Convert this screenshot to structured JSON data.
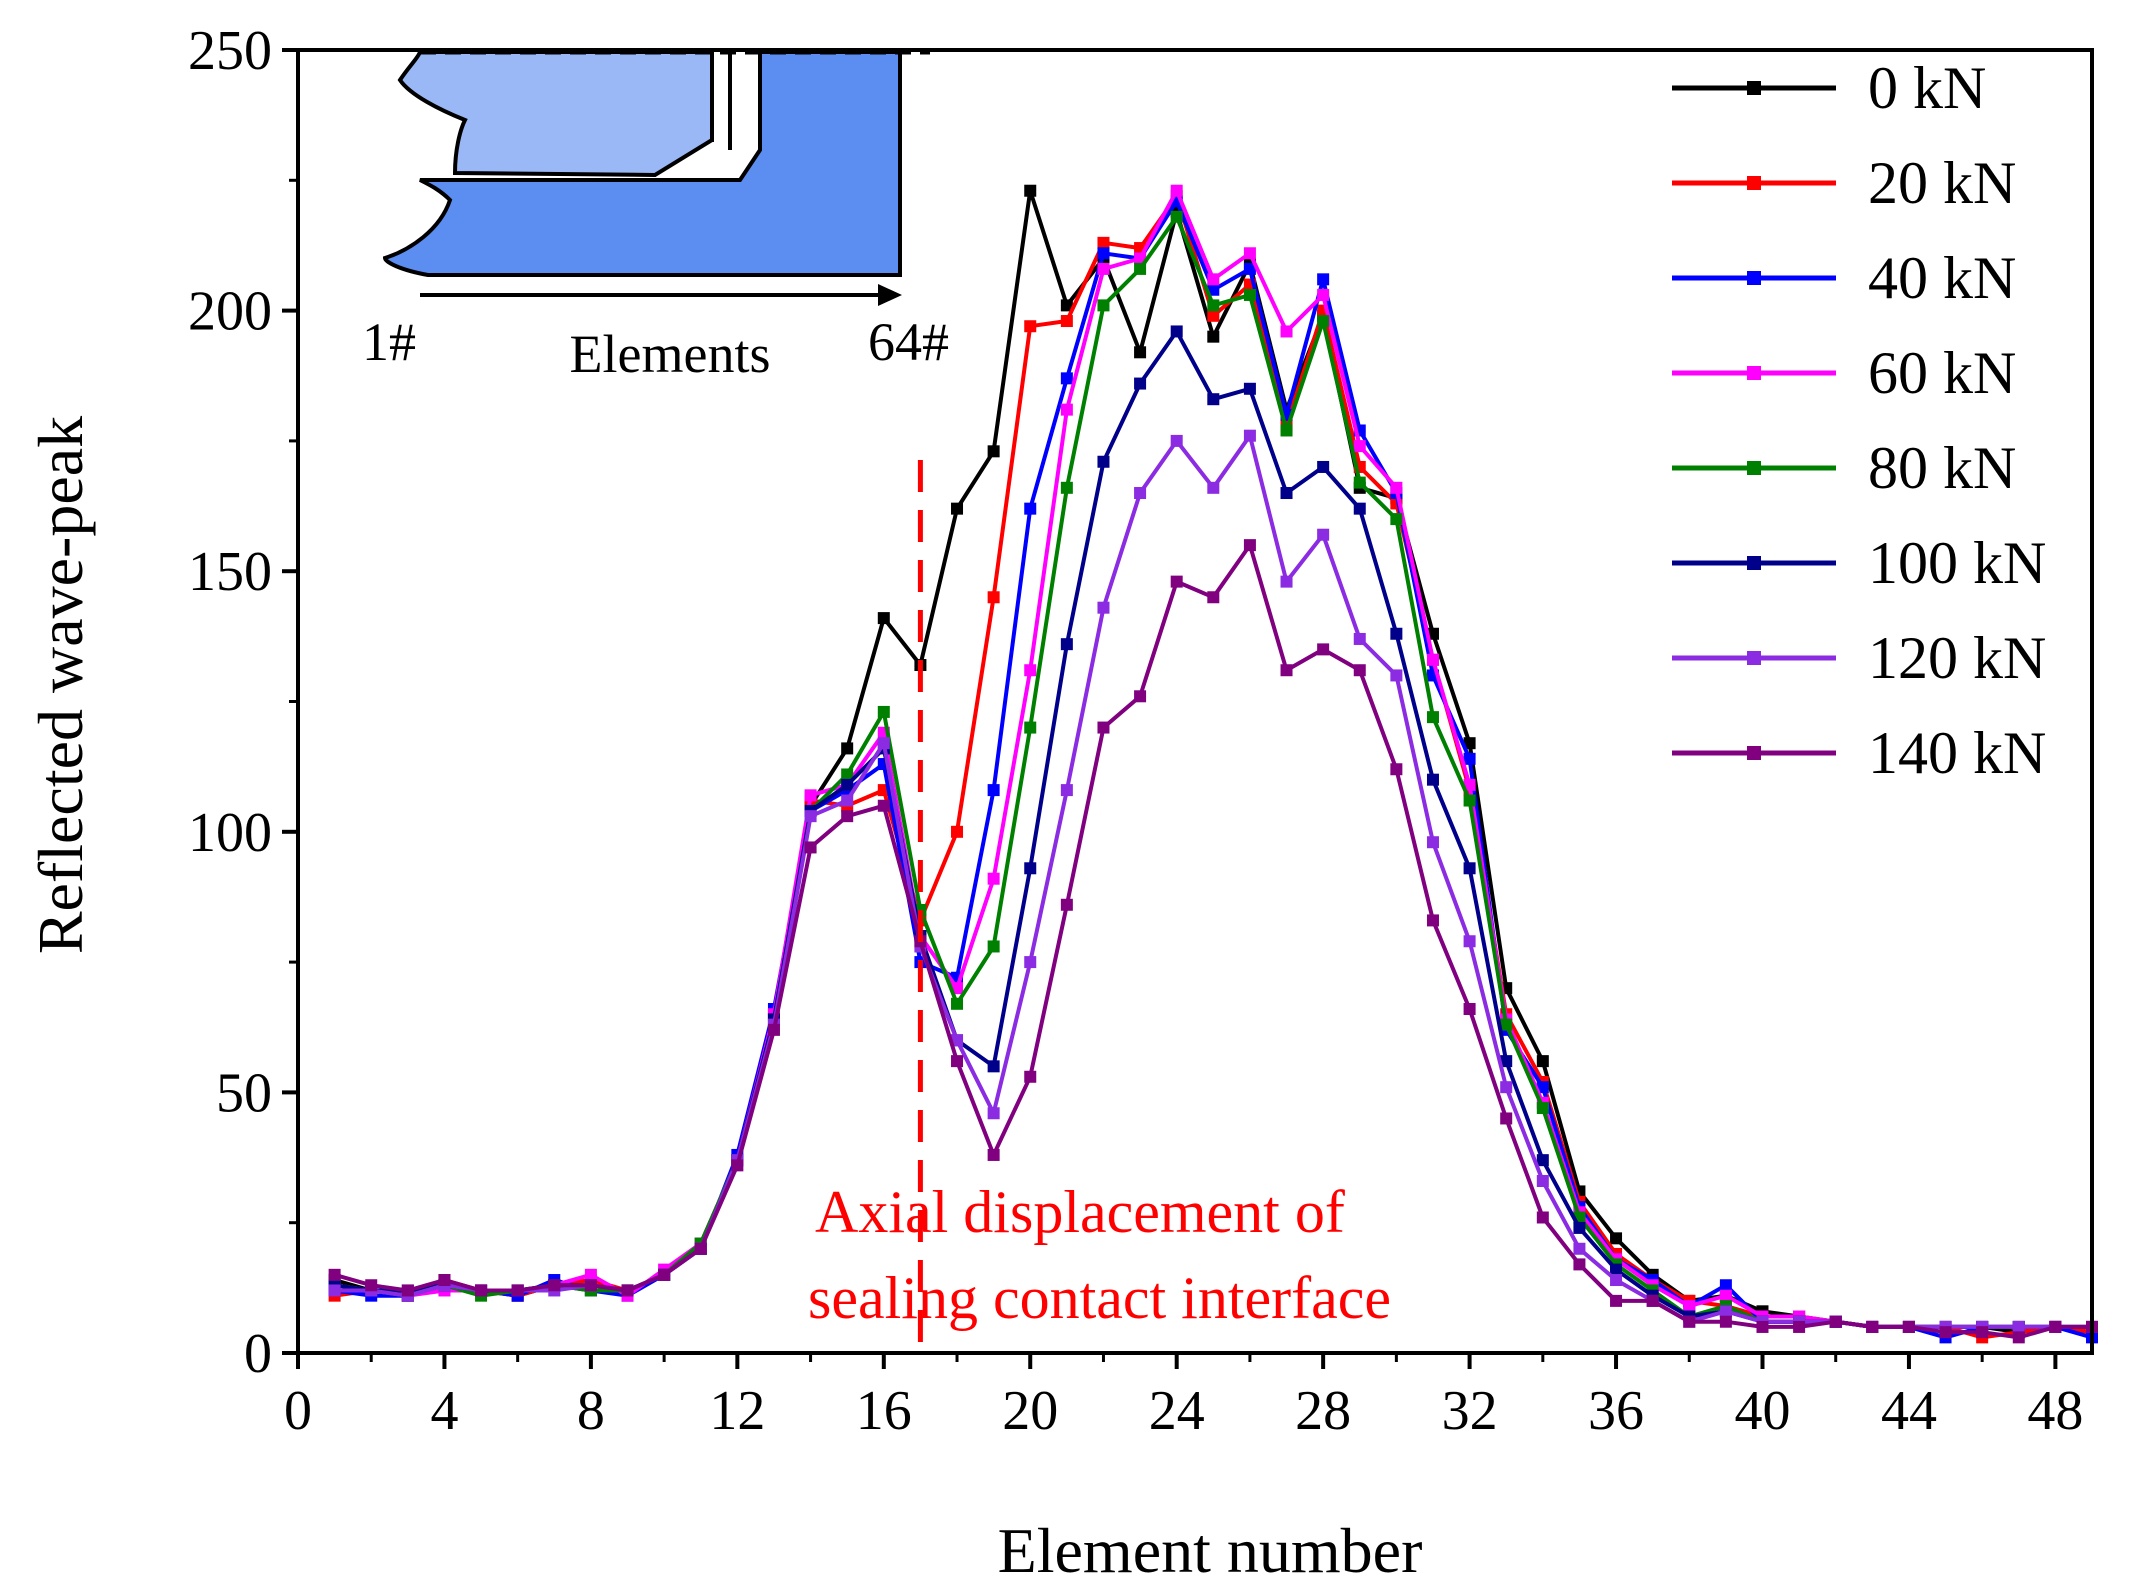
{
  "chart_data": {
    "type": "line",
    "title": "",
    "xlabel": "Element number",
    "ylabel": "Reflected wave-peak",
    "xlim": [
      0,
      49
    ],
    "ylim": [
      0,
      250
    ],
    "xticks": [
      0,
      4,
      8,
      12,
      16,
      20,
      24,
      28,
      32,
      36,
      40,
      44,
      48
    ],
    "yticks": [
      0,
      50,
      100,
      150,
      200,
      250
    ],
    "x": [
      1,
      2,
      3,
      4,
      5,
      6,
      7,
      8,
      9,
      10,
      11,
      12,
      13,
      14,
      15,
      16,
      17,
      18,
      19,
      20,
      21,
      22,
      23,
      24,
      25,
      26,
      27,
      28,
      29,
      30,
      31,
      32,
      33,
      34,
      35,
      36,
      37,
      38,
      39,
      40,
      41,
      42,
      43,
      44,
      45,
      46,
      47,
      48,
      49
    ],
    "legend_position": "top-right",
    "series": [
      {
        "name": "0 kN",
        "color": "#000000",
        "values": [
          14,
          12,
          11,
          13,
          12,
          11,
          13,
          12,
          12,
          15,
          20,
          37,
          65,
          105,
          116,
          141,
          132,
          162,
          173,
          223,
          201,
          210,
          192,
          219,
          195,
          209,
          181,
          199,
          166,
          164,
          138,
          117,
          70,
          56,
          31,
          22,
          15,
          10,
          11,
          8,
          7,
          6,
          5,
          5,
          5,
          5,
          4,
          5,
          4
        ]
      },
      {
        "name": "20 kN",
        "color": "#ff0000",
        "values": [
          11,
          12,
          11,
          14,
          12,
          11,
          13,
          14,
          12,
          15,
          21,
          37,
          64,
          106,
          105,
          108,
          83,
          100,
          145,
          197,
          198,
          213,
          212,
          222,
          199,
          205,
          178,
          200,
          170,
          163,
          133,
          108,
          65,
          52,
          29,
          19,
          14,
          10,
          9,
          7,
          7,
          6,
          5,
          5,
          5,
          3,
          4,
          5,
          4
        ]
      },
      {
        "name": "40 kN",
        "color": "#0000ff",
        "values": [
          12,
          11,
          11,
          13,
          12,
          11,
          14,
          12,
          11,
          15,
          20,
          38,
          66,
          104,
          108,
          113,
          75,
          72,
          108,
          162,
          187,
          211,
          210,
          221,
          204,
          208,
          180,
          206,
          177,
          165,
          130,
          114,
          62,
          51,
          28,
          18,
          14,
          9,
          13,
          6,
          6,
          6,
          5,
          5,
          3,
          5,
          5,
          5,
          3
        ]
      },
      {
        "name": "60 kN",
        "color": "#ff00ff",
        "values": [
          13,
          12,
          11,
          12,
          12,
          12,
          13,
          15,
          11,
          16,
          21,
          37,
          65,
          107,
          109,
          119,
          80,
          70,
          91,
          131,
          181,
          208,
          210,
          223,
          206,
          211,
          196,
          203,
          174,
          166,
          133,
          109,
          64,
          48,
          27,
          18,
          13,
          9,
          11,
          7,
          7,
          6,
          5,
          5,
          5,
          5,
          5,
          5,
          5
        ]
      },
      {
        "name": "80 kN",
        "color": "#008000",
        "values": [
          13,
          12,
          11,
          13,
          11,
          12,
          13,
          12,
          12,
          15,
          21,
          37,
          64,
          104,
          111,
          123,
          85,
          67,
          78,
          120,
          166,
          201,
          208,
          218,
          201,
          203,
          177,
          198,
          167,
          160,
          122,
          106,
          63,
          47,
          26,
          17,
          12,
          7,
          9,
          6,
          6,
          6,
          5,
          5,
          5,
          5,
          5,
          5,
          5
        ]
      },
      {
        "name": "100 kN",
        "color": "#00008b",
        "values": [
          13,
          12,
          12,
          13,
          12,
          12,
          13,
          13,
          12,
          15,
          20,
          37,
          64,
          104,
          109,
          116,
          80,
          60,
          55,
          93,
          136,
          171,
          186,
          196,
          183,
          185,
          165,
          170,
          162,
          138,
          110,
          93,
          56,
          37,
          24,
          16,
          11,
          7,
          8,
          6,
          6,
          6,
          5,
          5,
          5,
          5,
          5,
          5,
          5
        ]
      },
      {
        "name": "120 kN",
        "color": "#8b2be2",
        "values": [
          12,
          12,
          11,
          13,
          12,
          12,
          12,
          13,
          12,
          15,
          20,
          37,
          63,
          103,
          106,
          117,
          78,
          60,
          46,
          75,
          108,
          143,
          165,
          175,
          166,
          176,
          148,
          157,
          137,
          130,
          98,
          79,
          51,
          33,
          20,
          14,
          10,
          6,
          8,
          6,
          6,
          6,
          5,
          5,
          5,
          5,
          5,
          5,
          5
        ]
      },
      {
        "name": "140 kN",
        "color": "#800080",
        "values": [
          15,
          13,
          12,
          14,
          12,
          12,
          13,
          13,
          12,
          15,
          20,
          36,
          62,
          97,
          103,
          105,
          79,
          56,
          38,
          53,
          86,
          120,
          126,
          148,
          145,
          155,
          131,
          135,
          131,
          112,
          83,
          66,
          45,
          26,
          17,
          10,
          10,
          6,
          6,
          5,
          5,
          6,
          5,
          5,
          4,
          4,
          3,
          5,
          5
        ]
      }
    ],
    "annotation": {
      "line1": "Axial displacement of",
      "line2": "sealing contact interface",
      "x": 17,
      "color": "#ff0000"
    },
    "inset": {
      "start_label": "1#",
      "end_label": "64#",
      "axis_label": "Elements",
      "inner_color": "#9ab8f5",
      "outer_color": "#5b8ef0"
    }
  }
}
